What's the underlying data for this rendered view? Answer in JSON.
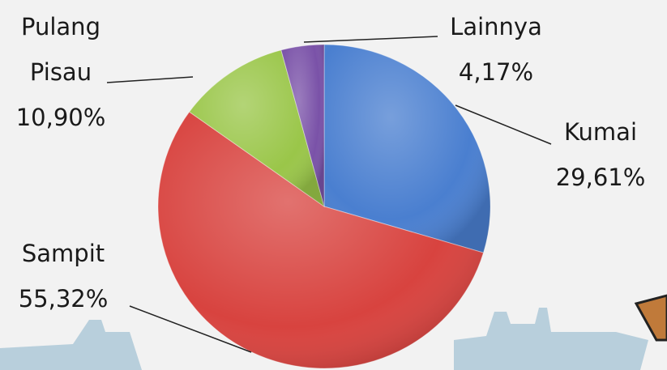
{
  "chart_data": {
    "type": "pie",
    "categories": [
      "Kumai",
      "Sampit",
      "Pulang Pisau",
      "Lainnya"
    ],
    "values": [
      29.61,
      55.32,
      10.9,
      4.17
    ],
    "value_labels": [
      "29,61%",
      "55,32%",
      "10,90%",
      "4,17%"
    ],
    "colors": [
      "#4a7fd0",
      "#d8433f",
      "#9ac649",
      "#7a52a8"
    ]
  }
}
